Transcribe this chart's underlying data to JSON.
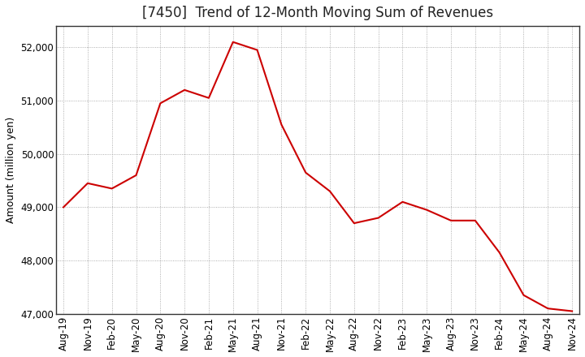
{
  "title": "[7450]  Trend of 12-Month Moving Sum of Revenues",
  "ylabel": "Amount (million yen)",
  "line_color": "#cc0000",
  "background_color": "#ffffff",
  "plot_bg_color": "#ffffff",
  "grid_color": "#999999",
  "ylim": [
    47000,
    52400
  ],
  "yticks": [
    47000,
    48000,
    49000,
    50000,
    51000,
    52000
  ],
  "x_labels": [
    "Aug-19",
    "Nov-19",
    "Feb-20",
    "May-20",
    "Aug-20",
    "Nov-20",
    "Feb-21",
    "May-21",
    "Aug-21",
    "Nov-21",
    "Feb-22",
    "May-22",
    "Aug-22",
    "Nov-22",
    "Feb-23",
    "May-23",
    "Aug-23",
    "Nov-23",
    "Feb-24",
    "May-24",
    "Aug-24",
    "Nov-24"
  ],
  "values": [
    49000,
    49450,
    49350,
    49600,
    50950,
    51200,
    51050,
    52100,
    51950,
    50550,
    49650,
    49300,
    48700,
    48800,
    49100,
    48950,
    48750,
    48750,
    48150,
    47350,
    47100,
    47050
  ],
  "title_fontsize": 12,
  "axis_fontsize": 9,
  "tick_fontsize": 8.5
}
